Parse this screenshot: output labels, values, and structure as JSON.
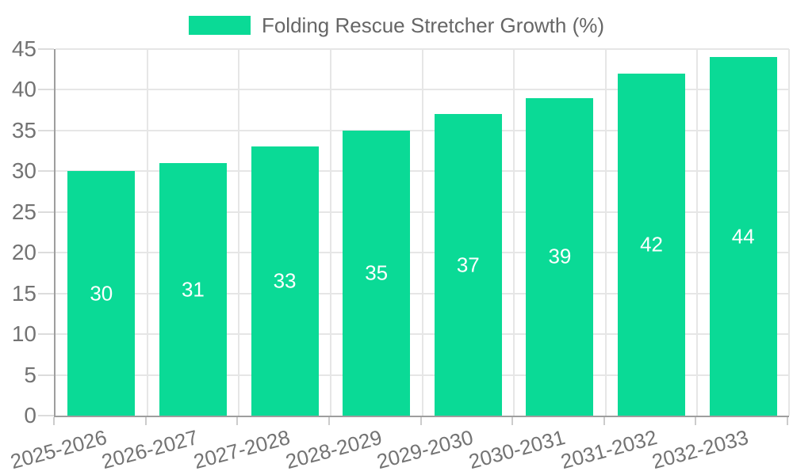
{
  "chart_data": {
    "type": "bar",
    "title": "",
    "legend": {
      "label": "Folding Rescue Stretcher Growth (%)",
      "position": "top"
    },
    "categories": [
      "2025-2026",
      "2026-2027",
      "2027-2028",
      "2028-2029",
      "2029-2030",
      "2030-2031",
      "2031-2032",
      "2032-2033"
    ],
    "series": [
      {
        "name": "Folding Rescue Stretcher Growth (%)",
        "values": [
          30,
          31,
          33,
          35,
          37,
          39,
          42,
          44
        ]
      }
    ],
    "value_labels": [
      "30",
      "31",
      "33",
      "35",
      "37",
      "39",
      "42",
      "44"
    ],
    "ylim": [
      0,
      45
    ],
    "yticks": [
      0,
      5,
      10,
      15,
      20,
      25,
      30,
      35,
      40,
      45
    ],
    "grid": true,
    "xtick_rotation_deg": -15,
    "colors": {
      "bar": "#0ada96",
      "value_label": "#ffffff",
      "grid_line": "#e6e6e6",
      "axis_line": "#9e9e9e",
      "tick_text": "#737373",
      "legend_text": "#666666"
    }
  }
}
